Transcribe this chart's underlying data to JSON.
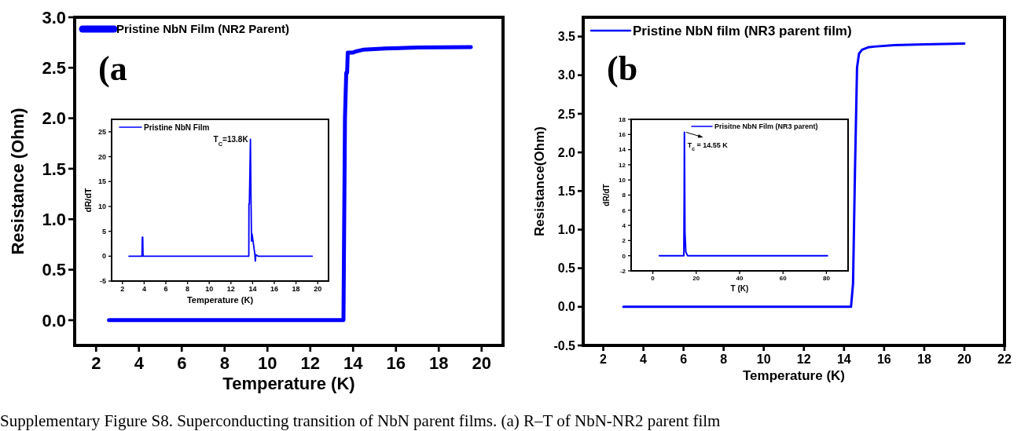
{
  "chart_data": [
    {
      "type": "line",
      "xlabel": "Temperature (K)",
      "ylabel": "Resistance (Ohm)",
      "xlim": [
        1,
        21
      ],
      "ylim": [
        -0.25,
        3.0
      ],
      "xticks": [
        2,
        4,
        6,
        8,
        10,
        12,
        14,
        16,
        18,
        20
      ],
      "yticks": [
        {
          "value": 0,
          "label": "0.0"
        },
        {
          "value": 0.5,
          "label": "0.5"
        },
        {
          "value": 1,
          "label": "1.0"
        },
        {
          "value": 1.5,
          "label": "1.5"
        },
        {
          "value": 2,
          "label": "2.0"
        },
        {
          "value": 2.5,
          "label": "2.5"
        },
        {
          "value": 3,
          "label": "3.0"
        }
      ],
      "legend": "top left",
      "grid": false,
      "series": [
        {
          "name": "Pristine NbN Film (NR2 Parent)",
          "color": "#0000ff",
          "x": [
            2.6,
            6,
            10,
            13.55,
            13.62,
            13.68,
            13.72,
            13.75,
            13.85,
            14.0,
            14.1,
            14.5,
            15.5,
            17,
            19.5
          ],
          "values": [
            0,
            0,
            0,
            0,
            2.0,
            2.45,
            2.45,
            2.65,
            2.65,
            2.65,
            2.66,
            2.68,
            2.69,
            2.7,
            2.705
          ]
        }
      ],
      "annotations": [
        "(a",
        "Supplementary Figure S8. Superconducting transition of NbN parent films. (a) R–T of NbN-NR2 parent film"
      ]
    },
    {
      "type": "line",
      "xlabel": "Temperature (K)",
      "ylabel": "dR/dT",
      "xlim": [
        1,
        21
      ],
      "ylim": [
        -5,
        27.5
      ],
      "xticks": [
        2,
        4,
        6,
        8,
        10,
        12,
        14,
        16,
        18,
        20
      ],
      "yticks": [
        -5,
        0,
        5,
        10,
        15,
        20,
        25
      ],
      "legend": "top left",
      "grid": false,
      "series": [
        {
          "name": "Pristine NbN Film",
          "color": "#0000ff",
          "x": [
            2.6,
            3.8,
            3.83,
            3.87,
            3.9,
            8,
            13.65,
            13.66,
            13.7,
            13.8,
            13.85,
            13.9,
            13.95,
            14.2,
            14.25,
            14.3,
            14.5,
            19.5
          ],
          "values": [
            0,
            0,
            3.8,
            3.8,
            0,
            0,
            0,
            10.5,
            10.5,
            23.5,
            12,
            3,
            4.5,
            0.5,
            -1,
            0.3,
            0,
            0
          ]
        }
      ],
      "annotations": [
        {
          "text": "T$_{C}$=13.8K",
          "x": 13.8,
          "y": 23.5
        }
      ]
    },
    {
      "type": "line",
      "xlabel": "Temperature (K)",
      "ylabel": "Resistance(Ohm)",
      "xlim": [
        1,
        22
      ],
      "ylim": [
        -0.5,
        3.75
      ],
      "xticks": [
        2,
        4,
        6,
        8,
        10,
        12,
        14,
        16,
        18,
        20,
        22
      ],
      "yticks": [
        {
          "value": -0.5,
          "label": "-0.5"
        },
        {
          "value": 0,
          "label": "0.0"
        },
        {
          "value": 0.5,
          "label": "0.5"
        },
        {
          "value": 1,
          "label": "1.0"
        },
        {
          "value": 1.5,
          "label": "1.5"
        },
        {
          "value": 2,
          "label": "2.0"
        },
        {
          "value": 2.5,
          "label": "2.5"
        },
        {
          "value": 3,
          "label": "3.0"
        },
        {
          "value": 3.5,
          "label": "3.5"
        }
      ],
      "legend": "top left",
      "grid": false,
      "series": [
        {
          "name": "Pristine NbN film (NR3 parent film)",
          "color": "#0000ff",
          "x": [
            3,
            8,
            14.35,
            14.45,
            14.55,
            14.65,
            14.75,
            14.9,
            15.2,
            15.5,
            16.5,
            18,
            20
          ],
          "values": [
            0,
            0,
            0,
            0.3,
            1.8,
            3.1,
            3.28,
            3.33,
            3.36,
            3.37,
            3.39,
            3.4,
            3.41
          ]
        }
      ],
      "annotations": [
        "(b"
      ]
    },
    {
      "type": "line",
      "xlabel": "T (K)",
      "ylabel": "dR/dT",
      "xlim": [
        -10,
        90
      ],
      "ylim": [
        -2,
        18
      ],
      "xticks": [
        0,
        20,
        40,
        60,
        80
      ],
      "yticks": [
        -2,
        0,
        2,
        4,
        6,
        8,
        10,
        12,
        14,
        16,
        18
      ],
      "legend": "top right",
      "grid": false,
      "series": [
        {
          "name": "Prisitne NbN Film (NR3 parent)",
          "color": "#0000ff",
          "x": [
            3,
            14.3,
            14.45,
            14.55,
            14.8,
            15.2,
            16,
            40,
            80.5
          ],
          "values": [
            0,
            0,
            8,
            16.3,
            3,
            0.5,
            0,
            0,
            0
          ]
        }
      ],
      "annotations": [
        {
          "text": "T$_{c}$ = 14.55 K",
          "x": 14.55,
          "y": 16.3
        }
      ]
    }
  ]
}
